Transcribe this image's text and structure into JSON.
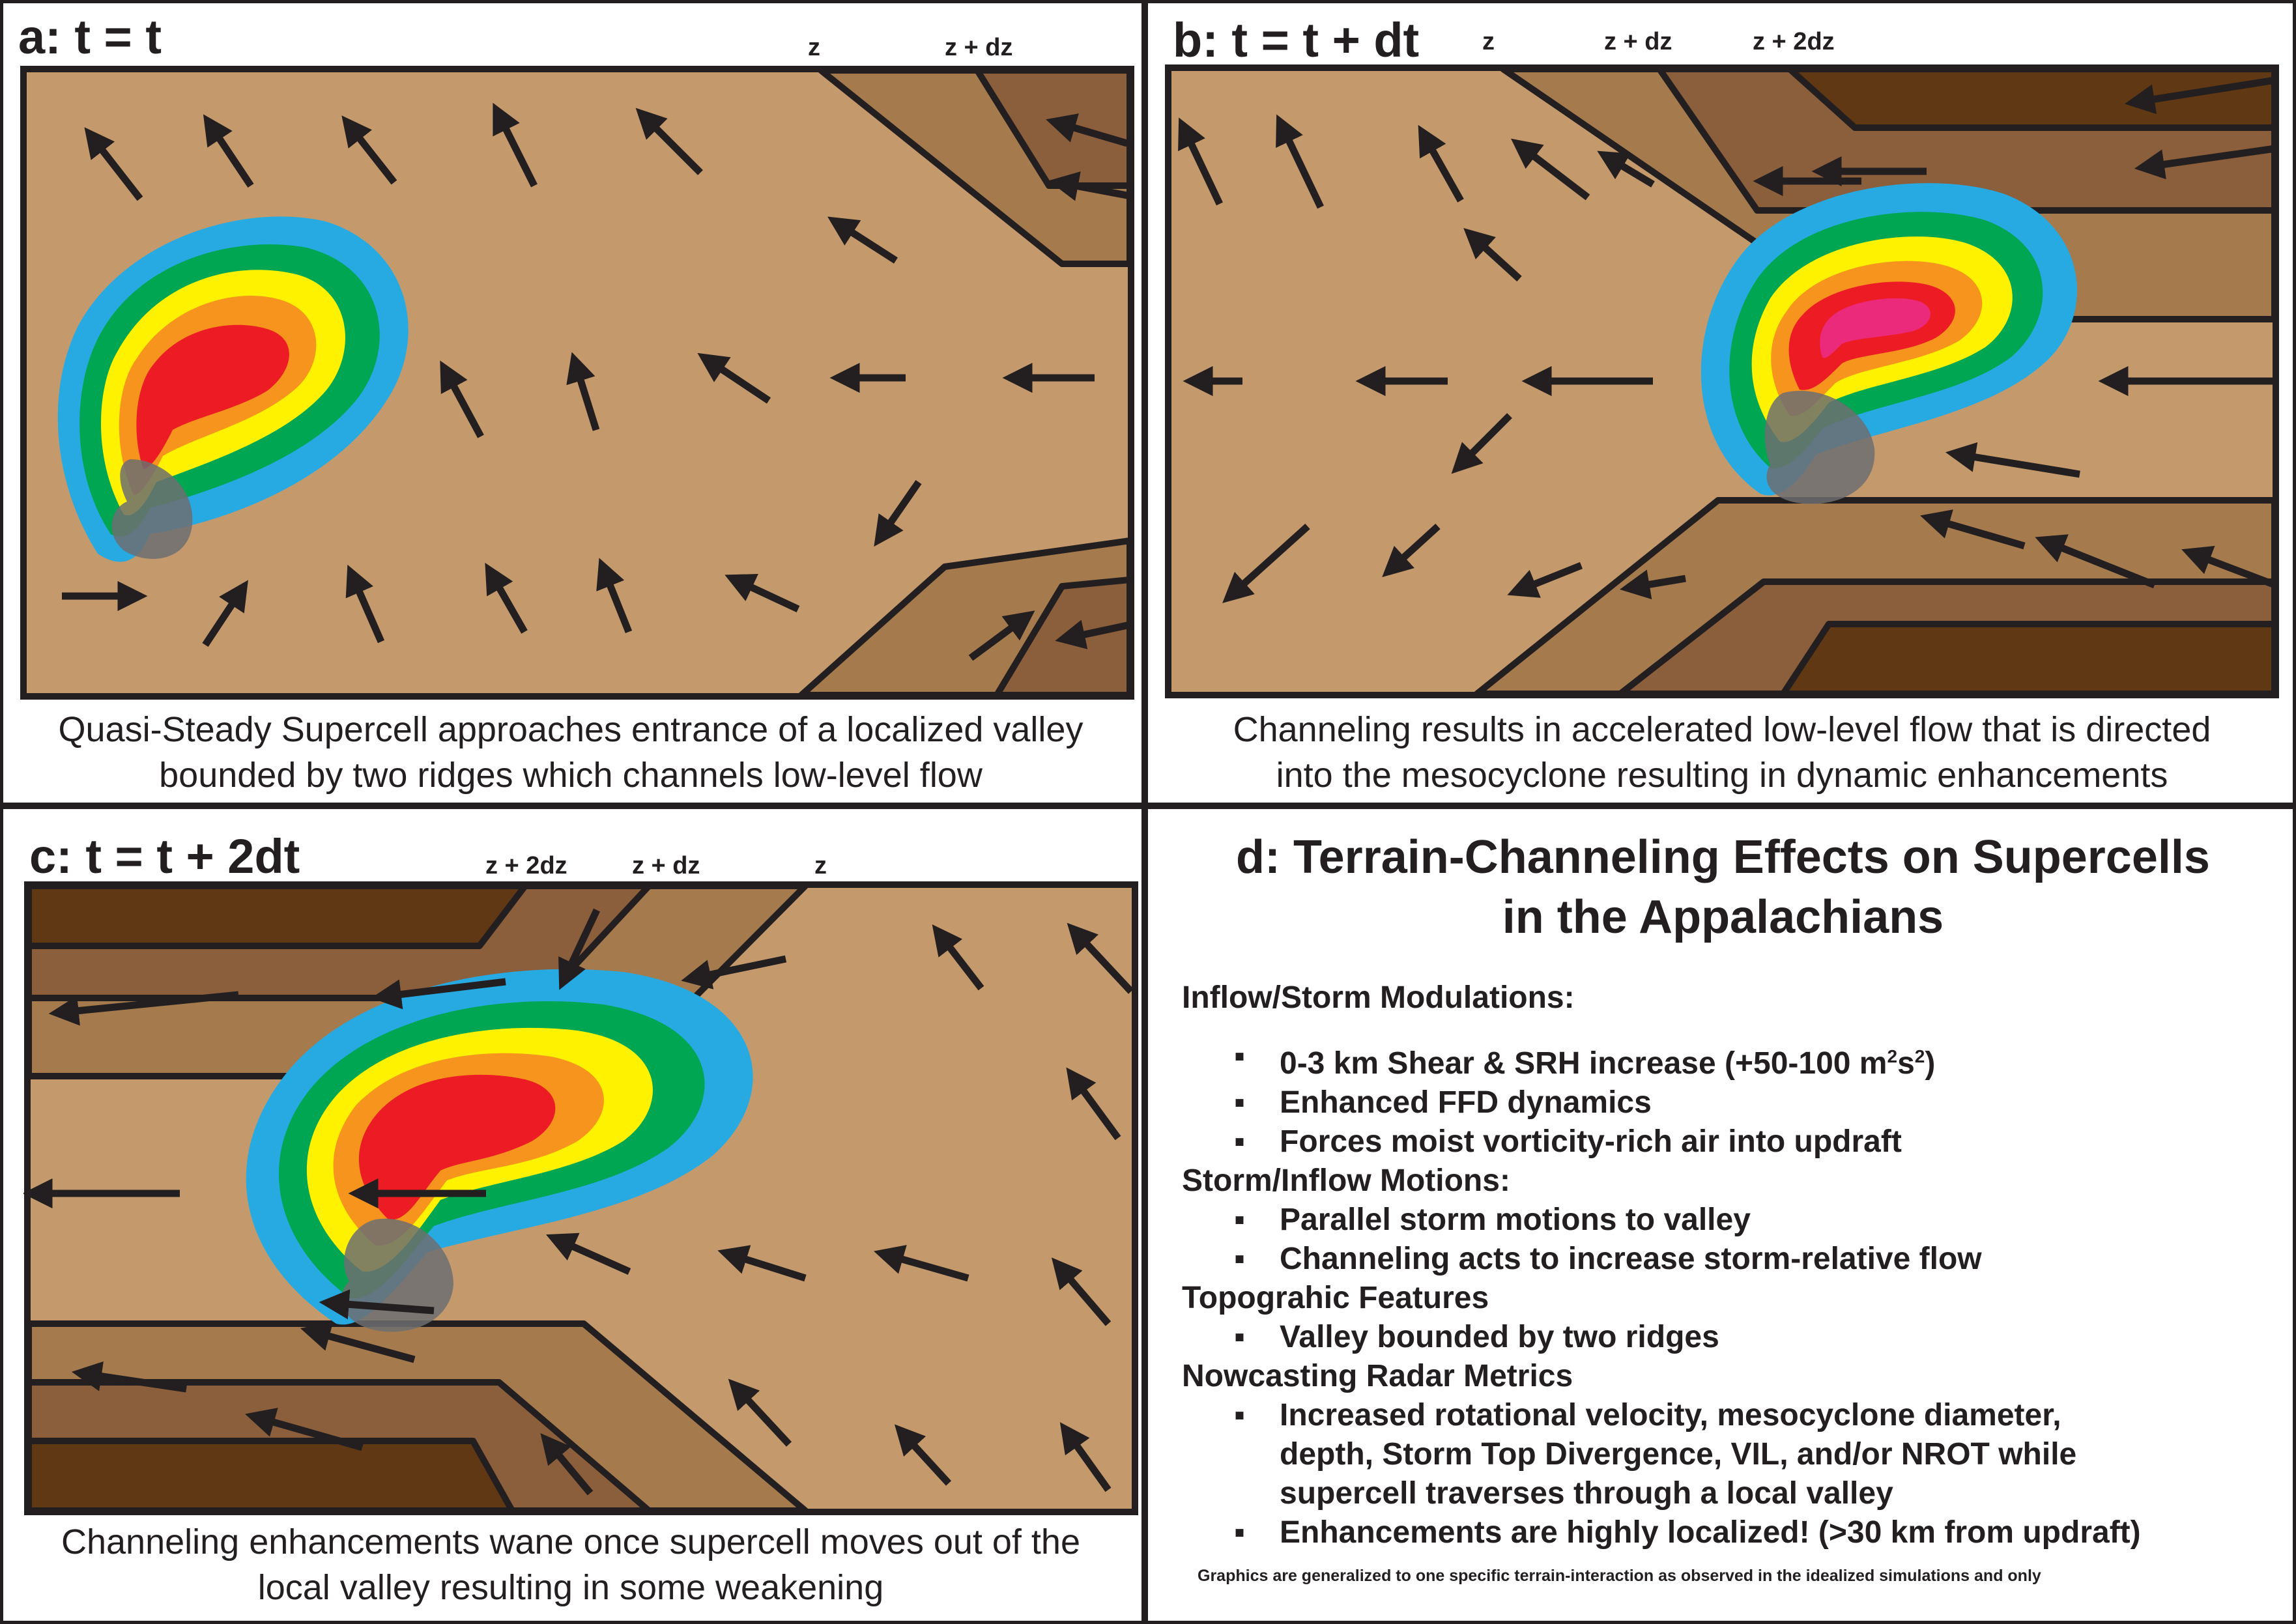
{
  "colors": {
    "valley": "#c49a6c",
    "ridge_mid": "#a57a4d",
    "ridge_dark": "#8b5e3c",
    "ridge_darkest": "#603813",
    "outline": "#231f20",
    "reflectivity": [
      "#27aae1",
      "#00a651",
      "#fff200",
      "#f7941d",
      "#ed1c24",
      "#ec2a7b"
    ],
    "mesocyclone": "#6d6e71"
  },
  "panels": {
    "a": {
      "title": "a: t = t",
      "levels": [
        "z",
        "z + dz"
      ],
      "caption_lines": [
        "Quasi-Steady Supercell approaches entrance of a localized valley",
        "bounded by two ridges which channels low-level flow"
      ]
    },
    "b": {
      "title": "b: t = t + dt",
      "levels": [
        "z",
        "z + dz",
        "z + 2dz"
      ],
      "caption_lines": [
        "Channeling results in accelerated low-level flow that is directed",
        "into the mesocyclone resulting in dynamic enhancements"
      ]
    },
    "c": {
      "title": "c: t = t + 2dt",
      "levels": [
        "z + 2dz",
        "z + dz",
        "z"
      ],
      "caption_lines": [
        "Channeling enhancements wane once supercell moves out of the",
        "local valley resulting in some weakening"
      ]
    }
  },
  "summary": {
    "title_lines": [
      "d: Terrain-Channeling Effects on Supercells",
      "in the Appalachians"
    ],
    "sections": [
      {
        "heading": "Inflow/Storm Modulations:",
        "bullets": [
          {
            "pre": "0-3 km  Shear & SRH increase (+50-100 m",
            "sup1": "2",
            "mid": "s",
            "sup2": "2",
            "post": ")"
          },
          {
            "text": "Enhanced FFD dynamics"
          },
          {
            "text": "Forces moist vorticity-rich air into updraft"
          }
        ]
      },
      {
        "heading": "Storm/Inflow Motions:",
        "bullets": [
          {
            "text": "Parallel storm motions to valley"
          },
          {
            "text": "Channeling acts to increase storm-relative flow"
          }
        ]
      },
      {
        "heading": "Topograhic Features",
        "bullets": [
          {
            "text": "Valley bounded by two ridges"
          }
        ]
      },
      {
        "heading": "Nowcasting Radar Metrics",
        "bullets": [
          {
            "lines": [
              "Increased rotational velocity, mesocyclone diameter,",
              "depth, Storm Top Divergence, VIL, and/or NROT while",
              "supercell traverses through a local valley"
            ]
          },
          {
            "text": "Enhancements are highly localized!  (>30 km from updraft)"
          }
        ]
      }
    ],
    "bullet_glyph": "▪",
    "footnote": "Graphics are generalized to one specific terrain-interaction as observed in the idealized simulations and only"
  }
}
